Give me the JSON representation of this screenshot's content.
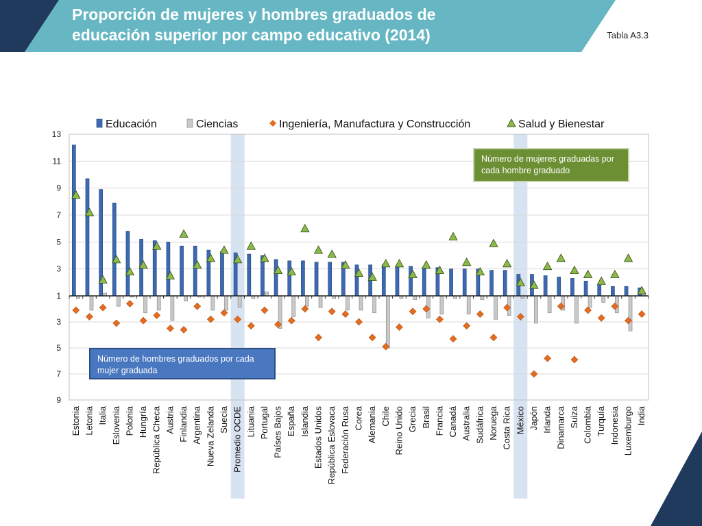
{
  "header": {
    "title_line1": "Proporción de mujeres y hombres graduados de",
    "title_line2": "educación superior por campo educativo (2014)",
    "table_label": "Tabla A3.3"
  },
  "colors": {
    "band_teal": "#66b7c3",
    "band_navy": "#1f3a5c",
    "education": "#3d69b1",
    "sciences": "#c9c9c9",
    "engineering": "#e36c1e",
    "health": "#8db84a",
    "highlight": "#d8e3f1",
    "note_green": "#6d8f34",
    "note_blue": "#4a78c0"
  },
  "notes": {
    "women": "Número de mujeres graduadas por cada hombre graduado",
    "men": "Número de hombres graduados por cada mujer graduada"
  },
  "chart_data": {
    "type": "bar",
    "legend_position": "top",
    "grid": true,
    "highlighted_categories": [
      "Promedio OCDE",
      "México"
    ],
    "y_upper_ticks": [
      "13",
      "11",
      "9",
      "7",
      "5",
      "3",
      "1"
    ],
    "y_lower_ticks": [
      "3",
      "5",
      "7",
      "9"
    ],
    "ylim_upper": [
      1,
      13
    ],
    "ylim_lower": [
      1,
      9
    ],
    "categories": [
      "Estonia",
      "Letonia",
      "Italia",
      "Eslovenia",
      "Polonia",
      "Hungría",
      "República Checa",
      "Austria",
      "Finlandia",
      "Argentina",
      "Nueva Zelanda",
      "Suecia",
      "Promedio OCDE",
      "Lituania",
      "Portugal",
      "Países Bajos",
      "España",
      "Islandia",
      "Estados Unidos",
      "República Eslovaca",
      "Federación Rusa",
      "Corea",
      "Alemania",
      "Chile",
      "Reino Unido",
      "Grecia",
      "Brasil",
      "Francia",
      "Canadá",
      "Australia",
      "Sudáfrica",
      "Noruega",
      "Costa Rica",
      "México",
      "Japón",
      "Irlanda",
      "Dinamarca",
      "Suiza",
      "Colombia",
      "Turquía",
      "Indonesia",
      "Luxemburgo",
      "India"
    ],
    "series": [
      {
        "name": "Educación",
        "mark": "bar",
        "values": [
          12.2,
          9.7,
          8.9,
          7.9,
          5.8,
          5.2,
          5.1,
          5.0,
          4.7,
          4.7,
          4.4,
          4.3,
          4.2,
          4.1,
          4.0,
          3.7,
          3.6,
          3.6,
          3.5,
          3.5,
          3.5,
          3.3,
          3.3,
          3.3,
          3.2,
          3.2,
          3.1,
          3.1,
          3.0,
          3.0,
          3.0,
          2.9,
          2.9,
          2.6,
          2.6,
          2.5,
          2.4,
          2.3,
          2.1,
          1.8,
          1.7,
          1.7,
          1.6
        ]
      },
      {
        "name": "Ciencias",
        "mark": "bar",
        "values": [
          -1.2,
          -2.1,
          1.2,
          -1.8,
          -1.1,
          -2.3,
          -2.1,
          -2.9,
          -1.4,
          -1.1,
          -2.1,
          -2.1,
          -1.9,
          -1.2,
          1.3,
          -3.5,
          -2.6,
          -1.8,
          -1.9,
          -1.2,
          -2.1,
          -2.1,
          -2.3,
          -5.0,
          -1.2,
          -1.3,
          -2.7,
          -2.4,
          -1.2,
          -2.4,
          -1.3,
          -2.8,
          -2.5,
          -1.2,
          -3.1,
          -2.3,
          -2.1,
          -3.1,
          -1.9,
          -1.5,
          -2.3,
          -3.7,
          1.1
        ]
      },
      {
        "name": "Ingeniería, Manufactura y Construcción",
        "mark": "diamond",
        "values": [
          -2.1,
          -2.6,
          -1.9,
          -3.1,
          -1.6,
          -2.9,
          -2.5,
          -3.5,
          -3.6,
          -1.8,
          -2.8,
          -2.3,
          -2.8,
          -3.3,
          -2.1,
          -3.2,
          -2.9,
          -2.0,
          -4.2,
          -2.2,
          -2.4,
          -3.0,
          -4.2,
          -4.9,
          -3.4,
          -2.2,
          -2.0,
          -2.8,
          -4.3,
          -3.3,
          -2.4,
          -4.2,
          -1.9,
          -2.6,
          -7.0,
          -5.8,
          -1.8,
          -5.9,
          -2.1,
          -2.7,
          -1.8,
          -2.9,
          -2.4
        ]
      },
      {
        "name": "Salud y Bienestar",
        "mark": "triangle",
        "values": [
          8.5,
          7.2,
          2.2,
          3.7,
          2.8,
          3.3,
          4.7,
          2.5,
          5.6,
          3.3,
          3.8,
          4.4,
          3.7,
          4.7,
          3.8,
          2.9,
          2.8,
          6.0,
          4.4,
          4.1,
          3.3,
          2.7,
          2.4,
          3.4,
          3.4,
          2.6,
          3.3,
          2.9,
          5.4,
          3.5,
          2.8,
          4.9,
          3.4,
          2.0,
          1.8,
          3.2,
          3.8,
          2.9,
          2.6,
          2.1,
          2.6,
          3.8,
          1.4
        ]
      }
    ]
  }
}
